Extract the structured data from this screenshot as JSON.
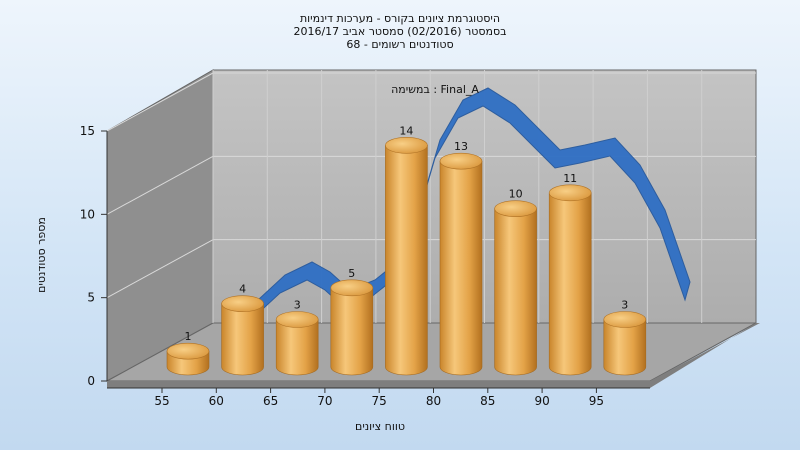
{
  "chart_data": {
    "type": "bar",
    "title_lines": [
      "היסטוגרמת ציונים בקורס - מערכות דינמיות",
      "בסמסטר  (02/2016)  סמסטר אביב 2016/17",
      "סטודנטים רשומים - 68"
    ],
    "subtitle": "במשימה : Final_A",
    "xlabel": "טווח ציונים",
    "ylabel": "מספר סטודנטים",
    "categories": [
      "55",
      "60",
      "65",
      "70",
      "75",
      "80",
      "85",
      "90",
      "95"
    ],
    "values": [
      1,
      4,
      3,
      5,
      14,
      13,
      10,
      11,
      3
    ],
    "y_ticks": [
      "0",
      "5",
      "10",
      "15"
    ],
    "ylim": [
      0,
      15
    ],
    "trend_series": "smoothed distribution (blue ribbon)",
    "colors": {
      "bar": "#e6a84a",
      "trend": "#2f6fc4",
      "wall": "#b8b8b8",
      "side_wall": "#8e8e8e",
      "floor": "#a8a8a8"
    }
  }
}
